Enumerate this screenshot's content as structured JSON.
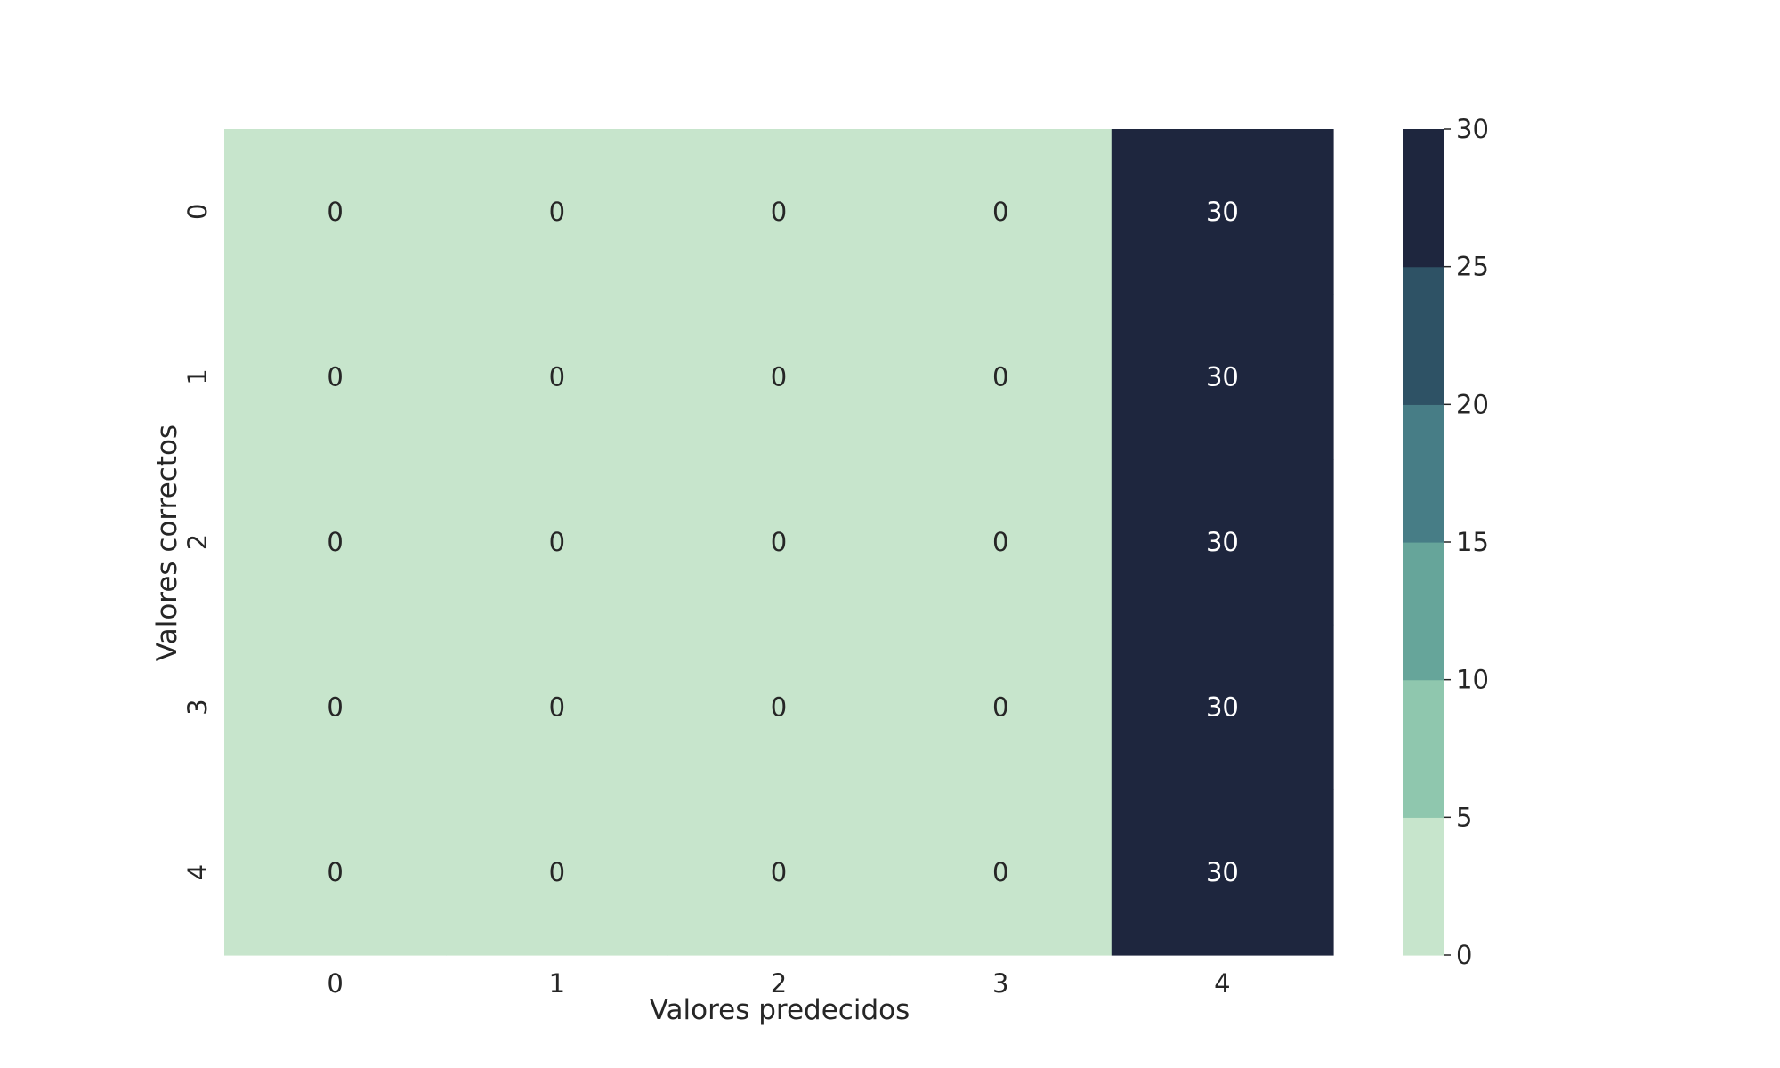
{
  "chart_data": {
    "type": "heatmap",
    "title": "",
    "xlabel": "Valores predecidos",
    "ylabel": "Valores correctos",
    "x_categories": [
      "0",
      "1",
      "2",
      "3",
      "4"
    ],
    "y_categories": [
      "0",
      "1",
      "2",
      "3",
      "4"
    ],
    "values": [
      [
        0,
        0,
        0,
        0,
        30
      ],
      [
        0,
        0,
        0,
        0,
        30
      ],
      [
        0,
        0,
        0,
        0,
        30
      ],
      [
        0,
        0,
        0,
        0,
        30
      ],
      [
        0,
        0,
        0,
        0,
        30
      ]
    ],
    "annotated": true,
    "colorbar": {
      "range": [
        0,
        30
      ],
      "ticks": [
        "0",
        "5",
        "10",
        "15",
        "20",
        "25",
        "30"
      ],
      "bins": [
        {
          "from": 0,
          "to": 5,
          "color": "#c7e5cc"
        },
        {
          "from": 5,
          "to": 10,
          "color": "#8fc7ae"
        },
        {
          "from": 10,
          "to": 15,
          "color": "#66a59a"
        },
        {
          "from": 15,
          "to": 20,
          "color": "#477d86"
        },
        {
          "from": 20,
          "to": 25,
          "color": "#2e5265"
        },
        {
          "from": 25,
          "to": 30,
          "color": "#1e263e"
        }
      ]
    },
    "annotation_colors": {
      "light_cell_text": "#262626",
      "dark_cell_text": "#ffffff"
    },
    "grid": false
  }
}
